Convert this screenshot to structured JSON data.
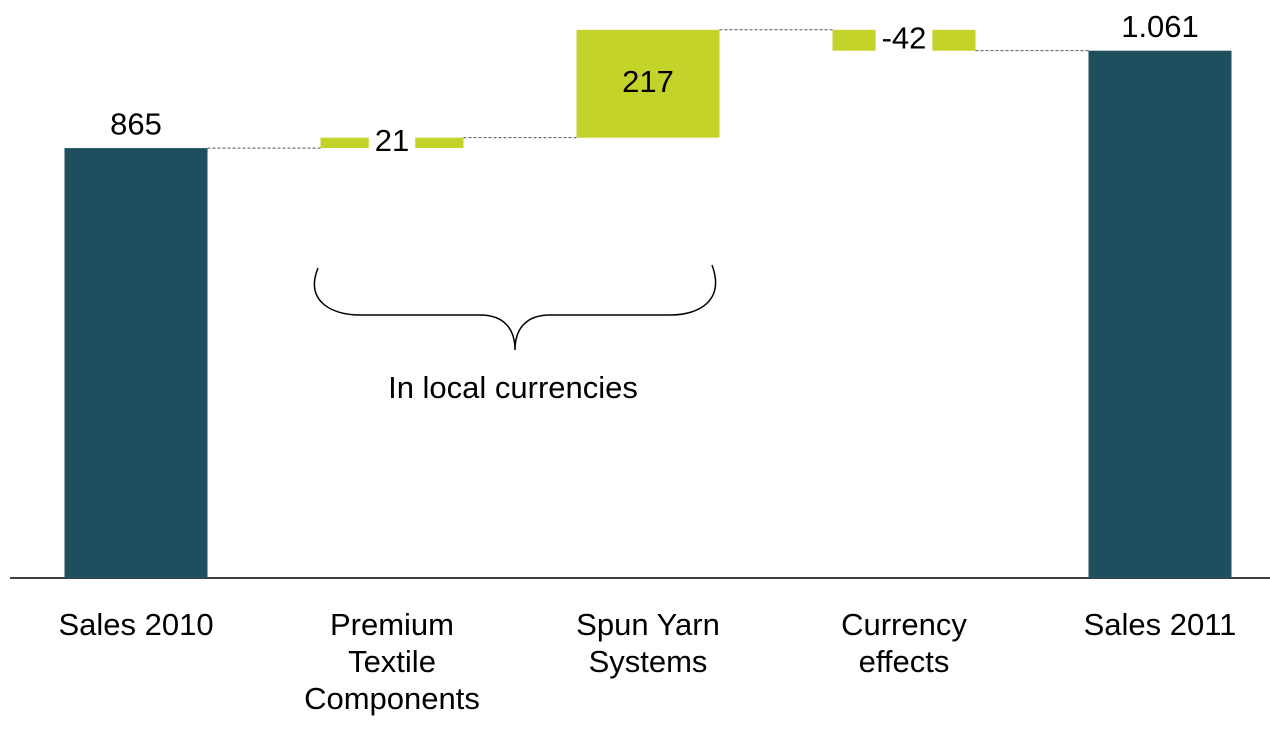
{
  "chart_data": {
    "type": "waterfall",
    "categories": [
      "Sales 2010",
      "Premium Textile Components",
      "Spun Yarn Systems",
      "Currency effects",
      "Sales 2011"
    ],
    "values": [
      865,
      21,
      217,
      -42,
      1061
    ],
    "value_labels": [
      "865",
      "21",
      "217",
      "-42",
      "1.061"
    ],
    "colors": [
      "#1d4f5e",
      "#c4d32a",
      "#c4d32a",
      "#c4d32a",
      "#1d4f5e"
    ],
    "annotation": "In local currencies"
  }
}
